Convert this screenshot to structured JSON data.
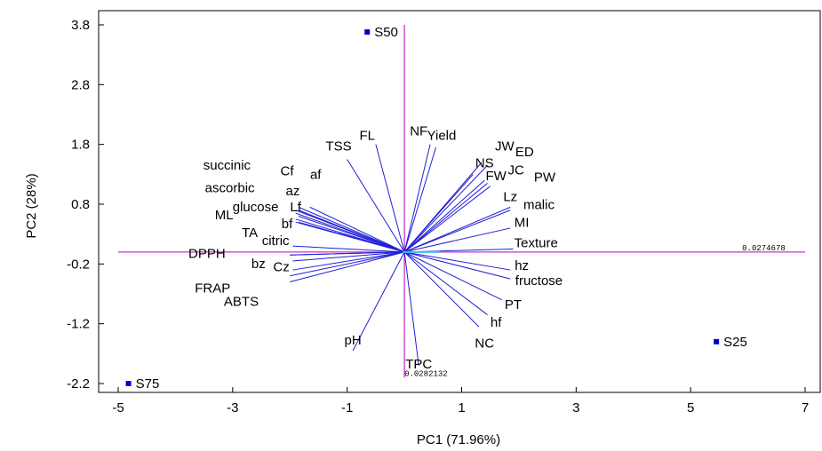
{
  "chart_data": {
    "type": "scatter",
    "subtype": "biplot",
    "title": "",
    "xlabel": "PC1 (71.96%)",
    "ylabel": "PC2 (28%)",
    "xlim": [
      -5,
      7
    ],
    "ylim": [
      -2.4,
      4.0
    ],
    "xticks": [
      -5,
      -3,
      -1,
      1,
      3,
      5,
      7
    ],
    "yticks": [
      -2.2,
      -1.2,
      -0.2,
      0.8,
      1.8,
      2.8,
      3.8
    ],
    "grid": false,
    "colors": {
      "loading": "#1f1fd6",
      "axis_line": "#cc33cc",
      "point": "#0000cc",
      "center": "#40c0e0"
    },
    "center_lines": {
      "horizontal_y": 0,
      "vertical_x": 0,
      "x_range": [
        -5,
        7
      ],
      "y_range": [
        -2.1,
        3.8
      ]
    },
    "axis_notes": [
      {
        "text": "0.0274678",
        "x": 5.9,
        "y": 0.0
      },
      {
        "text": "0.0282132",
        "x": 0.0,
        "y": -2.1
      }
    ],
    "samples": [
      {
        "name": "S50",
        "x": -0.65,
        "y": 3.68
      },
      {
        "name": "S25",
        "x": 5.45,
        "y": -1.5
      },
      {
        "name": "S75",
        "x": -4.82,
        "y": -2.2
      }
    ],
    "loadings": [
      {
        "name": "FL",
        "x": -0.5,
        "y": 1.8,
        "lx": -0.65,
        "ly": 1.88
      },
      {
        "name": "TSS",
        "x": -1.0,
        "y": 1.55,
        "lx": -1.15,
        "ly": 1.7
      },
      {
        "name": "NF",
        "x": 0.45,
        "y": 1.8,
        "lx": 0.25,
        "ly": 1.95
      },
      {
        "name": "Yield",
        "x": 0.55,
        "y": 1.75,
        "lx": 0.65,
        "ly": 1.88
      },
      {
        "name": "JW",
        "x": 1.35,
        "y": 1.5,
        "lx": 1.75,
        "ly": 1.7
      },
      {
        "name": "ED",
        "x": 1.45,
        "y": 1.45,
        "lx": 2.1,
        "ly": 1.6
      },
      {
        "name": "NS",
        "x": 1.2,
        "y": 1.3,
        "lx": 1.4,
        "ly": 1.42
      },
      {
        "name": "JC",
        "x": 1.4,
        "y": 1.2,
        "lx": 1.95,
        "ly": 1.3
      },
      {
        "name": "FW",
        "x": 1.45,
        "y": 1.15,
        "lx": 1.6,
        "ly": 1.2
      },
      {
        "name": "PW",
        "x": 1.5,
        "y": 1.1,
        "lx": 2.45,
        "ly": 1.18
      },
      {
        "name": "Lz",
        "x": 1.85,
        "y": 0.75,
        "lx": 1.85,
        "ly": 0.85
      },
      {
        "name": "malic",
        "x": 1.85,
        "y": 0.7,
        "lx": 2.35,
        "ly": 0.72
      },
      {
        "name": "MI",
        "x": 1.85,
        "y": 0.4,
        "lx": 2.05,
        "ly": 0.42
      },
      {
        "name": "Texture",
        "x": 1.9,
        "y": 0.05,
        "lx": 2.3,
        "ly": 0.08
      },
      {
        "name": "hz",
        "x": 1.85,
        "y": -0.3,
        "lx": 2.05,
        "ly": -0.3
      },
      {
        "name": "fructose",
        "x": 1.85,
        "y": -0.45,
        "lx": 2.35,
        "ly": -0.55
      },
      {
        "name": "PT",
        "x": 1.7,
        "y": -0.8,
        "lx": 1.9,
        "ly": -0.95
      },
      {
        "name": "hf",
        "x": 1.45,
        "y": -1.05,
        "lx": 1.6,
        "ly": -1.25
      },
      {
        "name": "NC",
        "x": 1.3,
        "y": -1.25,
        "lx": 1.4,
        "ly": -1.6
      },
      {
        "name": "TPC",
        "x": 0.25,
        "y": -1.9,
        "lx": 0.25,
        "ly": -1.95
      },
      {
        "name": "pH",
        "x": -0.9,
        "y": -1.65,
        "lx": -0.9,
        "ly": -1.55
      },
      {
        "name": "Cf",
        "x": -1.85,
        "y": 0.75,
        "lx": -2.05,
        "ly": 1.28
      },
      {
        "name": "af",
        "x": -1.65,
        "y": 0.75,
        "lx": -1.55,
        "ly": 1.22
      },
      {
        "name": "az",
        "x": -1.85,
        "y": 0.7,
        "lx": -1.95,
        "ly": 0.95
      },
      {
        "name": "Lf",
        "x": -1.85,
        "y": 0.6,
        "lx": -1.9,
        "ly": 0.68
      },
      {
        "name": "glucose",
        "x": -1.9,
        "y": 0.55,
        "lx": -2.6,
        "ly": 0.68
      },
      {
        "name": "bf",
        "x": -1.85,
        "y": 0.5,
        "lx": -2.05,
        "ly": 0.4
      },
      {
        "name": "citric",
        "x": -1.95,
        "y": 0.1,
        "lx": -2.25,
        "ly": 0.12
      },
      {
        "name": "bz",
        "x": -1.95,
        "y": -0.15,
        "lx": -2.55,
        "ly": -0.27
      },
      {
        "name": "Cz",
        "x": -1.95,
        "y": -0.3,
        "lx": -2.15,
        "ly": -0.32
      },
      {
        "name": "TA",
        "x": -2.0,
        "y": -0.05,
        "lx": -2.7,
        "ly": 0.25
      },
      {
        "name": "DPPH",
        "x": -2.0,
        "y": -0.05,
        "lx": -3.45,
        "ly": -0.1
      },
      {
        "name": "FRAP",
        "x": -2.0,
        "y": -0.4,
        "lx": -3.35,
        "ly": -0.68
      },
      {
        "name": "ABTS",
        "x": -2.0,
        "y": -0.5,
        "lx": -2.85,
        "ly": -0.9
      },
      {
        "name": "ML",
        "x": -1.9,
        "y": 0.5,
        "lx": -3.15,
        "ly": 0.55
      },
      {
        "name": "ascorbic",
        "x": -1.9,
        "y": 0.65,
        "lx": -3.05,
        "ly": 1.0
      },
      {
        "name": "succinic",
        "x": -1.9,
        "y": 0.7,
        "lx": -3.1,
        "ly": 1.38
      }
    ]
  }
}
